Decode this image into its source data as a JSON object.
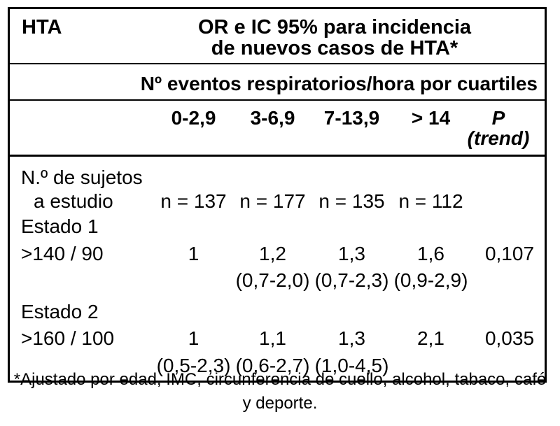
{
  "table": {
    "row_header": "HTA",
    "title": {
      "line1": "OR e IC 95% para incidencia",
      "line2": "de nuevos casos de HTA*"
    },
    "subheader": "Nº eventos respiratorios/hora por cuartiles",
    "columns": [
      "0-2,9",
      "3-6,9",
      "7-13,9",
      "> 14",
      "P (trend)"
    ],
    "rows": [
      {
        "label": "N.º de sujetos",
        "values": [
          "",
          "",
          "",
          "",
          ""
        ]
      },
      {
        "label": "a estudio",
        "values": [
          "n = 137",
          "n = 177",
          "n = 135",
          "n = 112",
          ""
        ]
      },
      {
        "label": "Estado 1",
        "values": [
          "",
          "",
          "",
          "",
          ""
        ]
      },
      {
        "label": ">140 / 90",
        "values": [
          "1",
          "1,2",
          "1,3",
          "1,6",
          "0,107"
        ]
      },
      {
        "label": "",
        "values": [
          "",
          "(0,7-2,0)",
          "(0,7-2,3)",
          "(0,9-2,9)",
          ""
        ]
      },
      {
        "label": "Estado 2",
        "values": [
          "",
          "",
          "",
          "",
          ""
        ]
      },
      {
        "label": ">160 / 100",
        "values": [
          "1",
          "1,1",
          "1,3",
          "2,1",
          "0,035"
        ]
      },
      {
        "label": "",
        "values": [
          "(0,5-2,3)",
          "(0,6-2,7)",
          "(1,0-4,5)",
          "",
          ""
        ]
      }
    ]
  },
  "footnote": {
    "line1": "*Ajustado por edad, IMC, circunferencia de cuello, alcohol, tabaco, café",
    "line2": "y deporte."
  }
}
